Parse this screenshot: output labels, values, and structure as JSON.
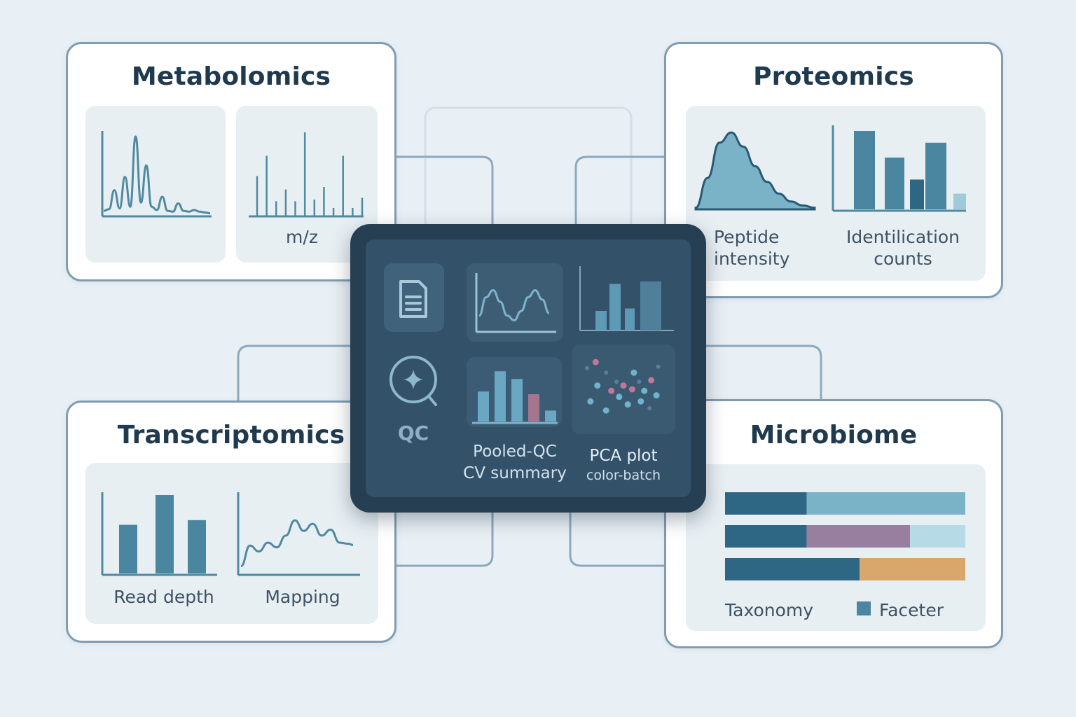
{
  "colors": {
    "background": "#e9f0f5",
    "card_border": "#7f9cb1",
    "chart_line": "#4f8aa0",
    "hub_dark": "#263f53",
    "teal_dark": "#2e6783",
    "teal_mid": "#4a86a0",
    "teal_light": "#7ab3c8",
    "pale_blue": "#b6dbe6",
    "purple": "#987e9f",
    "orange": "#d9a66c",
    "pink": "#a57590"
  },
  "cards": {
    "metabolomics": {
      "title": "Metabolomics",
      "mz_label": "m/z"
    },
    "proteomics": {
      "title": "Proteomics",
      "peptide_label": "Peptide\nintensity",
      "ident_label": "Identilication\ncounts"
    },
    "transcriptomics": {
      "title": "Transcriptomics",
      "depth_label": "Read depth",
      "mapping_label": "Mapping"
    },
    "microbiome": {
      "title": "Microbiome",
      "taxonomy_label": "Taxonomy",
      "faceter_label": "Faceter",
      "stacked_bars": [
        [
          {
            "value": 0.34,
            "color": "#2e6783"
          },
          {
            "value": 0.66,
            "color": "#7ab3c8"
          }
        ],
        [
          {
            "value": 0.34,
            "color": "#2e6783"
          },
          {
            "value": 0.43,
            "color": "#987e9f"
          },
          {
            "value": 0.23,
            "color": "#b6dbe6"
          }
        ],
        [
          {
            "value": 0.56,
            "color": "#2e6783"
          },
          {
            "value": 0.44,
            "color": "#d9a66c"
          }
        ]
      ]
    }
  },
  "hub": {
    "qc_label": "QC",
    "pooled_label": "Pooled-QC\nCV summary",
    "pca_title": "PCA plot",
    "pca_subtitle": "color-batch",
    "icons": [
      "document-icon",
      "qc-sparkle-icon"
    ]
  },
  "chart_data": [
    {
      "type": "line",
      "id": "metabolomics-chromatogram",
      "x": [
        0,
        5,
        10,
        15,
        20,
        25,
        30,
        35,
        40,
        45,
        50,
        55,
        60,
        65,
        70,
        75,
        80,
        85,
        90,
        95,
        100
      ],
      "y": [
        0.05,
        0.07,
        0.3,
        0.08,
        0.46,
        0.1,
        0.95,
        0.15,
        0.6,
        0.1,
        0.06,
        0.22,
        0.05,
        0.04,
        0.14,
        0.05,
        0.04,
        0.06,
        0.04,
        0.03,
        0.02
      ]
    },
    {
      "type": "bar",
      "id": "metabolomics-mz-spectrum",
      "xlabel": "m/z",
      "values": [
        0.48,
        0.72,
        0.18,
        0.32,
        0.18,
        1.0,
        0.2,
        0.35,
        0.1,
        0.72,
        0.1,
        0.22
      ]
    },
    {
      "type": "area",
      "id": "proteomics-peptide-intensity",
      "xlabel": "Peptide intensity",
      "x": [
        0,
        10,
        20,
        30,
        40,
        50,
        60,
        70,
        80,
        90,
        100
      ],
      "y": [
        0.02,
        0.4,
        0.85,
        0.98,
        0.8,
        0.55,
        0.35,
        0.2,
        0.1,
        0.05,
        0.02
      ]
    },
    {
      "type": "bar",
      "id": "proteomics-identification-counts",
      "xlabel": "Identilication counts",
      "values": [
        1.0,
        0.66,
        0.38,
        0.85,
        0.2
      ]
    },
    {
      "type": "bar",
      "id": "hub-pooled-qc-cv",
      "values": [
        0.55,
        0.92,
        0.78,
        0.5,
        0.2
      ]
    },
    {
      "type": "bar",
      "id": "hub-mini-bars",
      "values": [
        0.4,
        0.95,
        0.45,
        1.0
      ]
    },
    {
      "type": "line",
      "id": "hub-mini-line",
      "x": [
        0,
        10,
        20,
        30,
        40,
        50,
        60,
        70,
        80,
        90,
        100
      ],
      "y": [
        0.2,
        0.6,
        0.75,
        0.5,
        0.2,
        0.1,
        0.3,
        0.6,
        0.75,
        0.55,
        0.25
      ]
    },
    {
      "type": "scatter",
      "id": "hub-pca-plot",
      "title": "PCA plot",
      "subtitle": "color-batch",
      "points": [
        {
          "x": 0.08,
          "y": 0.78,
          "g": 0
        },
        {
          "x": 0.12,
          "y": 0.34,
          "g": 1
        },
        {
          "x": 0.2,
          "y": 0.55,
          "g": 1
        },
        {
          "x": 0.3,
          "y": 0.22,
          "g": 1
        },
        {
          "x": 0.36,
          "y": 0.48,
          "g": 2
        },
        {
          "x": 0.42,
          "y": 0.6,
          "g": 0
        },
        {
          "x": 0.45,
          "y": 0.4,
          "g": 1
        },
        {
          "x": 0.5,
          "y": 0.55,
          "g": 2
        },
        {
          "x": 0.55,
          "y": 0.3,
          "g": 1
        },
        {
          "x": 0.6,
          "y": 0.5,
          "g": 2
        },
        {
          "x": 0.62,
          "y": 0.72,
          "g": 1
        },
        {
          "x": 0.68,
          "y": 0.6,
          "g": 0
        },
        {
          "x": 0.7,
          "y": 0.34,
          "g": 1
        },
        {
          "x": 0.74,
          "y": 0.48,
          "g": 1
        },
        {
          "x": 0.8,
          "y": 0.25,
          "g": 0
        },
        {
          "x": 0.82,
          "y": 0.62,
          "g": 2
        },
        {
          "x": 0.88,
          "y": 0.42,
          "g": 1
        },
        {
          "x": 0.9,
          "y": 0.8,
          "g": 0
        },
        {
          "x": 0.3,
          "y": 0.72,
          "g": 0
        },
        {
          "x": 0.18,
          "y": 0.86,
          "g": 2
        }
      ]
    },
    {
      "type": "bar",
      "id": "transcriptomics-read-depth",
      "xlabel": "Read depth",
      "values": [
        0.62,
        1.0,
        0.68
      ]
    },
    {
      "type": "line",
      "id": "transcriptomics-mapping",
      "xlabel": "Mapping",
      "x": [
        0,
        8,
        16,
        24,
        32,
        40,
        48,
        56,
        64,
        72,
        80,
        88,
        96,
        100
      ],
      "y": [
        0.1,
        0.45,
        0.35,
        0.5,
        0.42,
        0.62,
        0.88,
        0.7,
        0.82,
        0.62,
        0.72,
        0.5,
        0.48,
        0.46
      ]
    },
    {
      "type": "bar",
      "id": "microbiome-taxonomy",
      "xlabel": "Taxonomy"
    }
  ]
}
